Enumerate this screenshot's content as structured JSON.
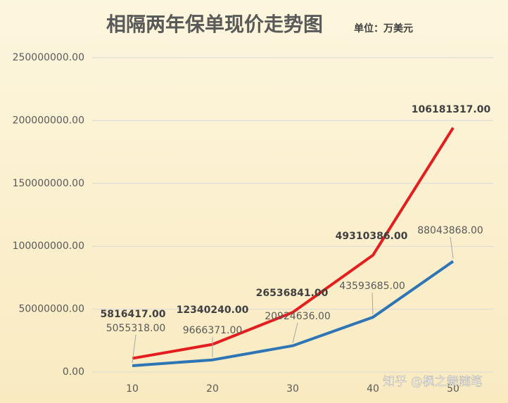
{
  "chart_data": {
    "type": "stacked-line",
    "title": "相隔两年保单现价走势图",
    "subtitle": "单位：万美元",
    "watermark": "知乎 @枫之舞随笔",
    "categories": [
      10,
      20,
      30,
      40,
      50
    ],
    "series": [
      {
        "color": "#2e75b6",
        "values": [
          5055318,
          9666371,
          20924636,
          43593685,
          88043868
        ],
        "value_labels": [
          "5055318.00",
          "9666371.00",
          "20924636.00",
          "43593685.00",
          "88043868.00"
        ]
      },
      {
        "color": "#e41e1e",
        "values": [
          5816417,
          12340240,
          26536841,
          49310386,
          106181317
        ],
        "value_labels": [
          "5816417.00",
          "12340240.00",
          "26536841.00",
          "49310386.00",
          "106181317.00"
        ]
      }
    ],
    "ylim": [
      0,
      250000000
    ],
    "yticks": [
      {
        "value": 0,
        "label": "0.00"
      },
      {
        "value": 50000000,
        "label": "50000000.00"
      },
      {
        "value": 100000000,
        "label": "100000000.00"
      },
      {
        "value": 150000000,
        "label": "150000000.00"
      },
      {
        "value": 200000000,
        "label": "200000000.00"
      },
      {
        "value": 250000000,
        "label": "250000000.00"
      }
    ],
    "grid": true
  }
}
